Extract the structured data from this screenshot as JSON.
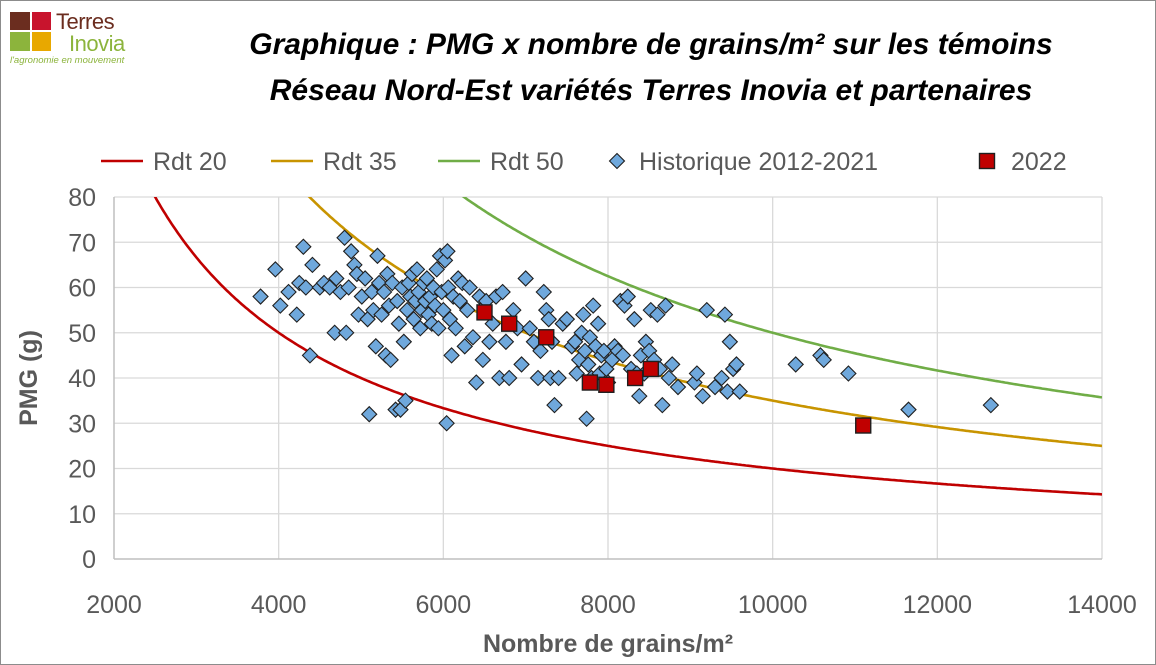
{
  "logo": {
    "name_line1": "Terres",
    "name_line2": "Inovia",
    "tagline": "l'agronomie en mouvement",
    "colors": [
      "#6b2d1f",
      "#c8142d",
      "#8cb43c",
      "#e8a800"
    ]
  },
  "title_line1": "Graphique : PMG x nombre de grains/m² sur les témoins",
  "title_line2": "Réseau Nord-Est variétés Terres Inovia et partenaires",
  "chart_data": {
    "type": "scatter",
    "xlabel": "Nombre de grains/m²",
    "ylabel": "PMG (g)",
    "xlim": [
      2000,
      14000
    ],
    "ylim": [
      0,
      80
    ],
    "xticks": [
      2000,
      4000,
      6000,
      8000,
      10000,
      12000,
      14000
    ],
    "yticks": [
      0,
      10,
      20,
      30,
      40,
      50,
      60,
      70,
      80
    ],
    "grid": true,
    "legend_position": "top",
    "curves": [
      {
        "name": "Rdt 20",
        "yield": 20,
        "color": "#c00000"
      },
      {
        "name": "Rdt 35",
        "yield": 35,
        "color": "#c89400"
      },
      {
        "name": "Rdt 50",
        "yield": 50,
        "color": "#70ad47"
      }
    ],
    "series": [
      {
        "name": "Historique 2012-2021",
        "marker": "diamond",
        "color": "#6fa8dc",
        "points": [
          [
            3780,
            58
          ],
          [
            3960,
            64
          ],
          [
            4020,
            56
          ],
          [
            4120,
            59
          ],
          [
            4220,
            54
          ],
          [
            4250,
            61
          ],
          [
            4300,
            69
          ],
          [
            4330,
            60
          ],
          [
            4380,
            45
          ],
          [
            4410,
            65
          ],
          [
            4500,
            60
          ],
          [
            4550,
            61
          ],
          [
            4620,
            60
          ],
          [
            4680,
            50
          ],
          [
            4700,
            62
          ],
          [
            4750,
            59
          ],
          [
            4800,
            71
          ],
          [
            4820,
            50
          ],
          [
            4850,
            60
          ],
          [
            4880,
            68
          ],
          [
            4920,
            65
          ],
          [
            4950,
            63
          ],
          [
            4970,
            54
          ],
          [
            5010,
            58
          ],
          [
            5050,
            62
          ],
          [
            5080,
            53
          ],
          [
            5100,
            32
          ],
          [
            5130,
            59
          ],
          [
            5150,
            55
          ],
          [
            5180,
            47
          ],
          [
            5200,
            67
          ],
          [
            5220,
            61
          ],
          [
            5250,
            54
          ],
          [
            5280,
            59
          ],
          [
            5300,
            45
          ],
          [
            5320,
            63
          ],
          [
            5340,
            56
          ],
          [
            5360,
            44
          ],
          [
            5380,
            61
          ],
          [
            5420,
            33
          ],
          [
            5440,
            57
          ],
          [
            5460,
            52
          ],
          [
            5480,
            33
          ],
          [
            5500,
            60
          ],
          [
            5520,
            48
          ],
          [
            5540,
            35
          ],
          [
            5560,
            55
          ],
          [
            5580,
            61
          ],
          [
            5600,
            58
          ],
          [
            5620,
            63
          ],
          [
            5640,
            53
          ],
          [
            5660,
            57
          ],
          [
            5680,
            64
          ],
          [
            5700,
            59
          ],
          [
            5720,
            51
          ],
          [
            5740,
            55
          ],
          [
            5760,
            61
          ],
          [
            5780,
            57
          ],
          [
            5800,
            62
          ],
          [
            5820,
            54
          ],
          [
            5840,
            58
          ],
          [
            5860,
            52
          ],
          [
            5880,
            60
          ],
          [
            5900,
            56
          ],
          [
            5920,
            64
          ],
          [
            5940,
            51
          ],
          [
            5960,
            67
          ],
          [
            5980,
            59
          ],
          [
            6000,
            55
          ],
          [
            6020,
            66
          ],
          [
            6040,
            30
          ],
          [
            6050,
            68
          ],
          [
            6060,
            60
          ],
          [
            6080,
            53
          ],
          [
            6100,
            45
          ],
          [
            6120,
            58
          ],
          [
            6150,
            51
          ],
          [
            6180,
            62
          ],
          [
            6200,
            57
          ],
          [
            6230,
            61
          ],
          [
            6260,
            47
          ],
          [
            6290,
            55
          ],
          [
            6320,
            60
          ],
          [
            6360,
            49
          ],
          [
            6400,
            39
          ],
          [
            6440,
            58
          ],
          [
            6480,
            44
          ],
          [
            6520,
            57
          ],
          [
            6560,
            48
          ],
          [
            6600,
            52
          ],
          [
            6640,
            58
          ],
          [
            6680,
            40
          ],
          [
            6720,
            59
          ],
          [
            6760,
            48
          ],
          [
            6800,
            40
          ],
          [
            6850,
            55
          ],
          [
            6900,
            51
          ],
          [
            6950,
            43
          ],
          [
            7000,
            62
          ],
          [
            7050,
            51
          ],
          [
            7100,
            48
          ],
          [
            7150,
            40
          ],
          [
            7180,
            46
          ],
          [
            7220,
            59
          ],
          [
            7250,
            55
          ],
          [
            7280,
            53
          ],
          [
            7300,
            40
          ],
          [
            7320,
            48
          ],
          [
            7350,
            34
          ],
          [
            7400,
            40
          ],
          [
            7450,
            52
          ],
          [
            7500,
            53
          ],
          [
            7560,
            47
          ],
          [
            7600,
            48
          ],
          [
            7620,
            41
          ],
          [
            7650,
            44
          ],
          [
            7680,
            50
          ],
          [
            7700,
            54
          ],
          [
            7720,
            46
          ],
          [
            7740,
            31
          ],
          [
            7760,
            43
          ],
          [
            7780,
            49
          ],
          [
            7800,
            40
          ],
          [
            7820,
            56
          ],
          [
            7850,
            47
          ],
          [
            7880,
            52
          ],
          [
            7900,
            41
          ],
          [
            7920,
            45
          ],
          [
            7950,
            46
          ],
          [
            7980,
            42
          ],
          [
            8000,
            39
          ],
          [
            8050,
            44
          ],
          [
            8080,
            47
          ],
          [
            8120,
            46
          ],
          [
            8150,
            57
          ],
          [
            8180,
            45
          ],
          [
            8200,
            56
          ],
          [
            8240,
            58
          ],
          [
            8280,
            42
          ],
          [
            8320,
            53
          ],
          [
            8350,
            41
          ],
          [
            8380,
            36
          ],
          [
            8400,
            45
          ],
          [
            8440,
            41
          ],
          [
            8460,
            48
          ],
          [
            8500,
            46
          ],
          [
            8520,
            55
          ],
          [
            8560,
            44
          ],
          [
            8600,
            54
          ],
          [
            8630,
            42
          ],
          [
            8660,
            34
          ],
          [
            8700,
            56
          ],
          [
            8740,
            40
          ],
          [
            8780,
            43
          ],
          [
            8850,
            38
          ],
          [
            9050,
            39
          ],
          [
            9080,
            41
          ],
          [
            9150,
            36
          ],
          [
            9200,
            55
          ],
          [
            9300,
            38
          ],
          [
            9380,
            40
          ],
          [
            9420,
            54
          ],
          [
            9450,
            37
          ],
          [
            9480,
            48
          ],
          [
            9520,
            42
          ],
          [
            9560,
            43
          ],
          [
            9600,
            37
          ],
          [
            10280,
            43
          ],
          [
            10580,
            45
          ],
          [
            10620,
            44
          ],
          [
            10920,
            41
          ],
          [
            11650,
            33
          ],
          [
            12650,
            34
          ]
        ]
      },
      {
        "name": "2022",
        "marker": "square",
        "color": "#c00000",
        "points": [
          [
            6500,
            54.5
          ],
          [
            6800,
            52
          ],
          [
            7250,
            49
          ],
          [
            7780,
            39
          ],
          [
            7980,
            38.5
          ],
          [
            8330,
            40
          ],
          [
            8520,
            42
          ],
          [
            11100,
            29.5
          ]
        ]
      }
    ]
  }
}
